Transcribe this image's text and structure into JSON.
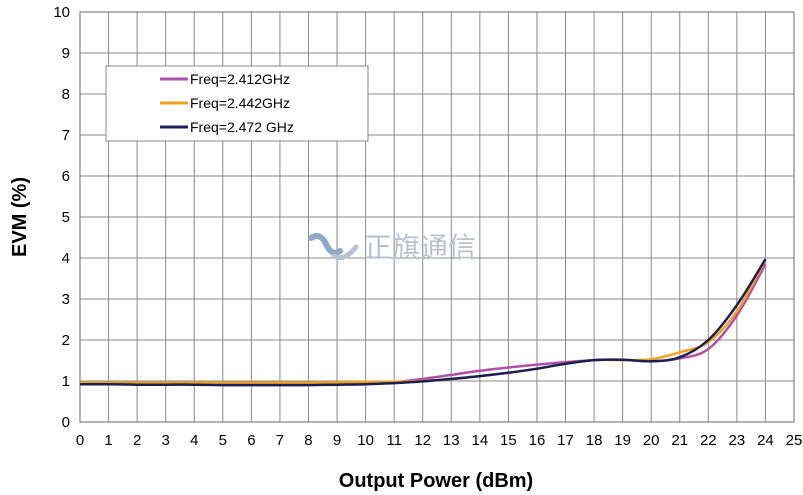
{
  "chart_data": {
    "type": "line",
    "title": "",
    "xlabel": "Output Power (dBm)",
    "ylabel": "EVM (%)",
    "xlim": [
      0,
      25
    ],
    "ylim": [
      0,
      10
    ],
    "x_ticks": [
      "0",
      "1",
      "2",
      "3",
      "4",
      "5",
      "6",
      "7",
      "8",
      "9",
      "10",
      "11",
      "12",
      "13",
      "14",
      "15",
      "16",
      "17",
      "18",
      "19",
      "20",
      "21",
      "22",
      "23",
      "24",
      "25"
    ],
    "y_ticks": [
      "0",
      "1",
      "2",
      "3",
      "4",
      "5",
      "6",
      "7",
      "8",
      "9",
      "10"
    ],
    "grid": true,
    "legend_position": "top-left",
    "x": [
      0,
      1,
      2,
      3,
      4,
      5,
      6,
      7,
      8,
      9,
      10,
      11,
      12,
      13,
      14,
      15,
      16,
      17,
      18,
      19,
      20,
      21,
      22,
      23,
      24
    ],
    "series": [
      {
        "name": "Freq=2.412GHz",
        "color": "#b04fa8",
        "values": [
          0.95,
          0.94,
          0.93,
          0.93,
          0.93,
          0.93,
          0.93,
          0.93,
          0.93,
          0.93,
          0.94,
          0.97,
          1.05,
          1.15,
          1.25,
          1.33,
          1.4,
          1.46,
          1.51,
          1.52,
          1.48,
          1.55,
          1.78,
          2.6,
          3.85
        ]
      },
      {
        "name": "Freq=2.442GHz",
        "color": "#f0a21c",
        "values": [
          0.96,
          0.96,
          0.96,
          0.96,
          0.96,
          0.96,
          0.96,
          0.96,
          0.96,
          0.97,
          0.98,
          0.98,
          1.0,
          1.05,
          1.12,
          1.2,
          1.3,
          1.42,
          1.51,
          1.51,
          1.53,
          1.7,
          1.95,
          2.7,
          3.95
        ]
      },
      {
        "name": "Freq=2.472 GHz",
        "color": "#1c1e54",
        "values": [
          0.92,
          0.92,
          0.91,
          0.91,
          0.91,
          0.9,
          0.9,
          0.9,
          0.9,
          0.91,
          0.92,
          0.95,
          0.99,
          1.05,
          1.12,
          1.2,
          1.3,
          1.42,
          1.51,
          1.52,
          1.48,
          1.58,
          2.0,
          2.85,
          3.97
        ]
      }
    ]
  },
  "watermark": {
    "text": "正旗通信",
    "logo_color": "#8fa9c8"
  }
}
